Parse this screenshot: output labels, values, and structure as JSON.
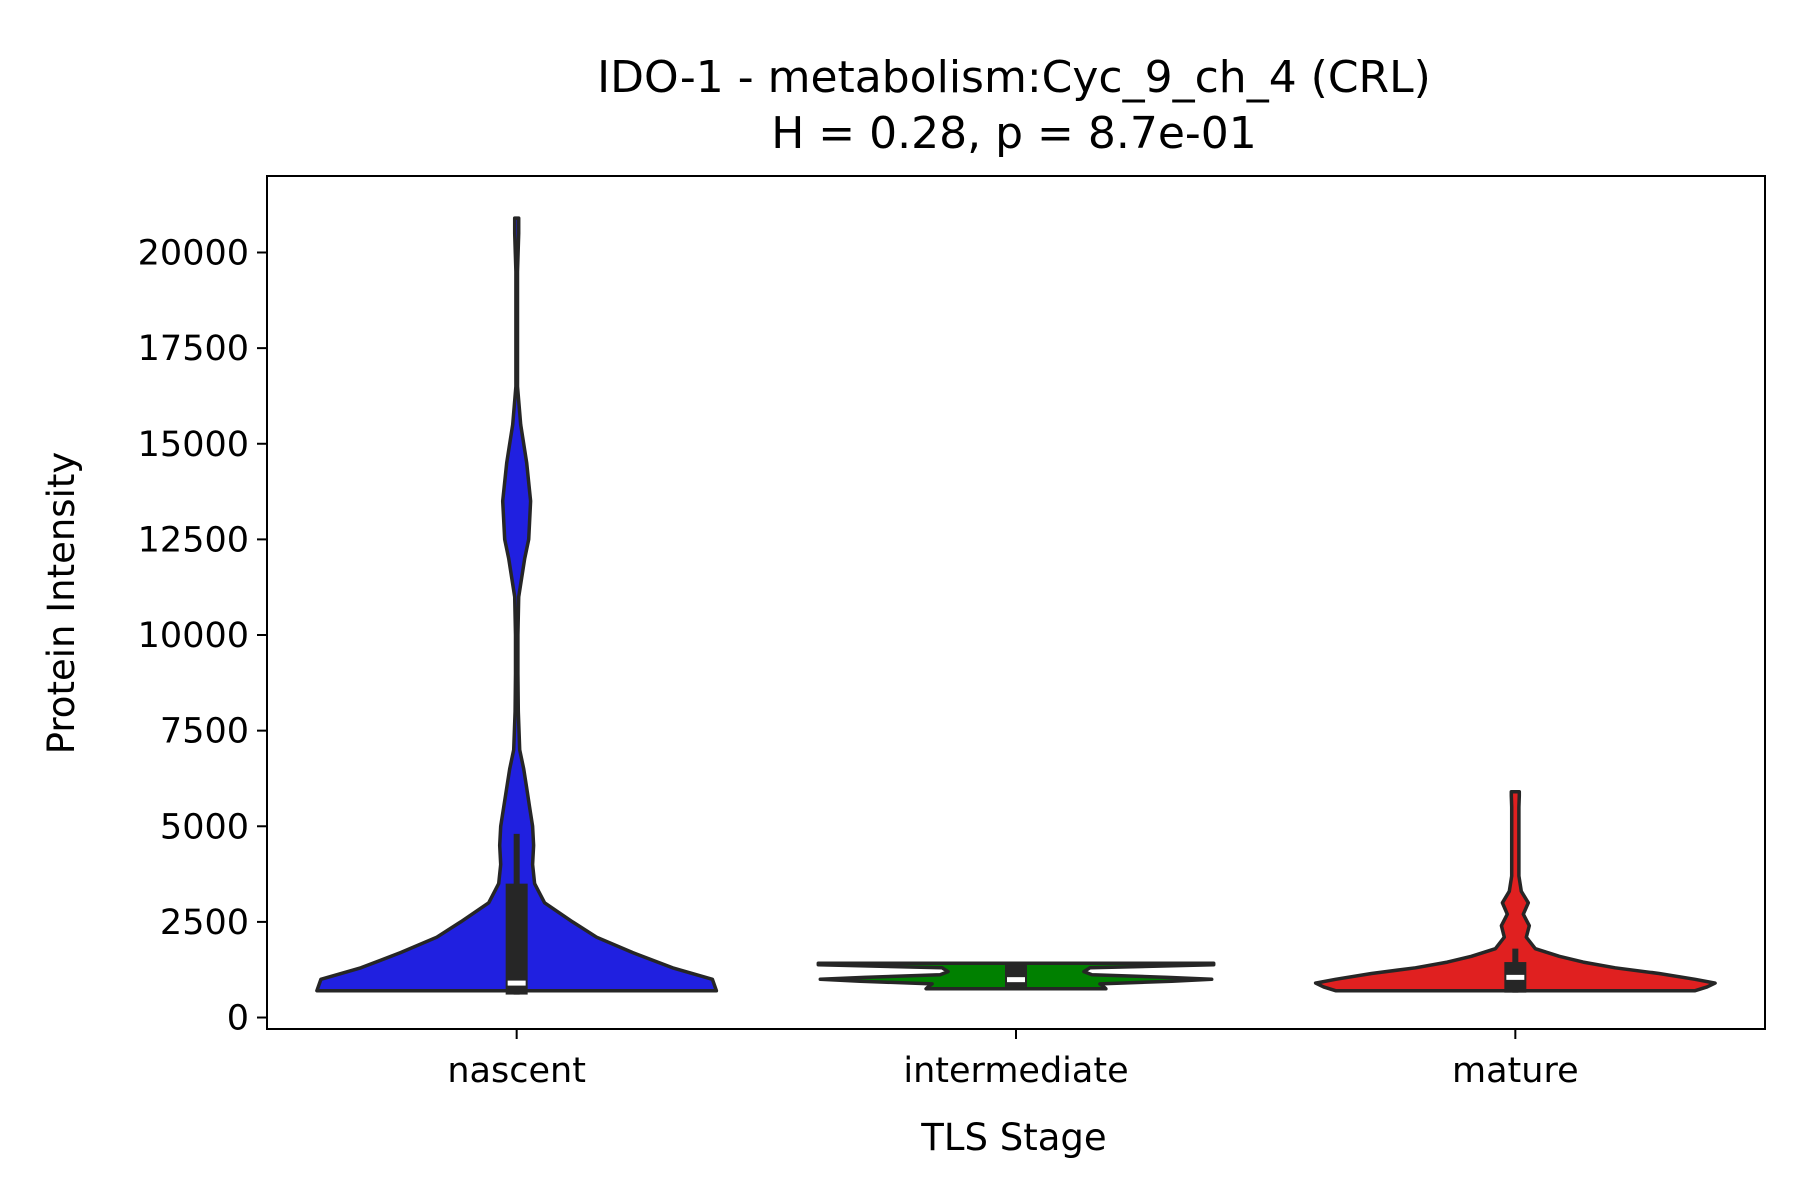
{
  "chart_data": {
    "type": "violin",
    "title": "IDO-1 - metabolism:Cyc_9_ch_4 (CRL)",
    "subtitle": "H = 0.28, p = 8.7e-01",
    "xlabel": "TLS Stage",
    "ylabel": "Protein Intensity",
    "ylim": [
      -300,
      22000
    ],
    "yticks": [
      0,
      2500,
      5000,
      7500,
      10000,
      12500,
      15000,
      17500,
      20000
    ],
    "ytick_labels": [
      "0",
      "2500",
      "5000",
      "7500",
      "10000",
      "12500",
      "15000",
      "17500",
      "20000"
    ],
    "categories": [
      "nascent",
      "intermediate",
      "mature"
    ],
    "grid": false,
    "legend": "none",
    "series": [
      {
        "category": "nascent",
        "color": "#2020e0",
        "min": 700,
        "max": 20900,
        "q1": 600,
        "median": 900,
        "q3": 3500,
        "whisker_low": 600,
        "whisker_high": 4800,
        "density": [
          [
            700,
            1.0
          ],
          [
            1000,
            0.98
          ],
          [
            1300,
            0.78
          ],
          [
            1700,
            0.58
          ],
          [
            2100,
            0.4
          ],
          [
            2500,
            0.28
          ],
          [
            3000,
            0.14
          ],
          [
            3500,
            0.09
          ],
          [
            4000,
            0.08
          ],
          [
            4500,
            0.085
          ],
          [
            5000,
            0.08
          ],
          [
            5500,
            0.065
          ],
          [
            6000,
            0.05
          ],
          [
            6500,
            0.035
          ],
          [
            7000,
            0.015
          ],
          [
            8000,
            0.008
          ],
          [
            9000,
            0.006
          ],
          [
            10000,
            0.006
          ],
          [
            11000,
            0.01
          ],
          [
            12000,
            0.04
          ],
          [
            12500,
            0.06
          ],
          [
            13500,
            0.07
          ],
          [
            14500,
            0.05
          ],
          [
            15500,
            0.02
          ],
          [
            16500,
            0.004
          ],
          [
            18000,
            0.004
          ],
          [
            19500,
            0.004
          ],
          [
            20500,
            0.01
          ],
          [
            20900,
            0.01
          ]
        ]
      },
      {
        "category": "intermediate",
        "color": "#008000",
        "min": 750,
        "max": 1420,
        "q1": 800,
        "median": 990,
        "q3": 1400,
        "whisker_low": 800,
        "whisker_high": 1400,
        "density": [
          [
            750,
            0.45
          ],
          [
            800,
            0.44
          ],
          [
            880,
            0.42
          ],
          [
            950,
            0.78
          ],
          [
            1000,
            0.98
          ],
          [
            1050,
            0.76
          ],
          [
            1120,
            0.38
          ],
          [
            1200,
            0.34
          ],
          [
            1300,
            0.37
          ],
          [
            1380,
            0.99
          ],
          [
            1420,
            0.99
          ]
        ]
      },
      {
        "category": "mature",
        "color": "#e02020",
        "min": 700,
        "max": 5900,
        "q1": 650,
        "median": 1050,
        "q3": 1450,
        "whisker_low": 650,
        "whisker_high": 1800,
        "density": [
          [
            700,
            0.9
          ],
          [
            800,
            0.96
          ],
          [
            900,
            1.0
          ],
          [
            1000,
            0.9
          ],
          [
            1150,
            0.72
          ],
          [
            1300,
            0.5
          ],
          [
            1450,
            0.34
          ],
          [
            1600,
            0.22
          ],
          [
            1800,
            0.1
          ],
          [
            2100,
            0.055
          ],
          [
            2400,
            0.07
          ],
          [
            2700,
            0.04
          ],
          [
            3000,
            0.065
          ],
          [
            3300,
            0.03
          ],
          [
            3700,
            0.018
          ],
          [
            4300,
            0.018
          ],
          [
            5000,
            0.018
          ],
          [
            5500,
            0.018
          ],
          [
            5800,
            0.02
          ],
          [
            5900,
            0.02
          ]
        ]
      }
    ]
  }
}
